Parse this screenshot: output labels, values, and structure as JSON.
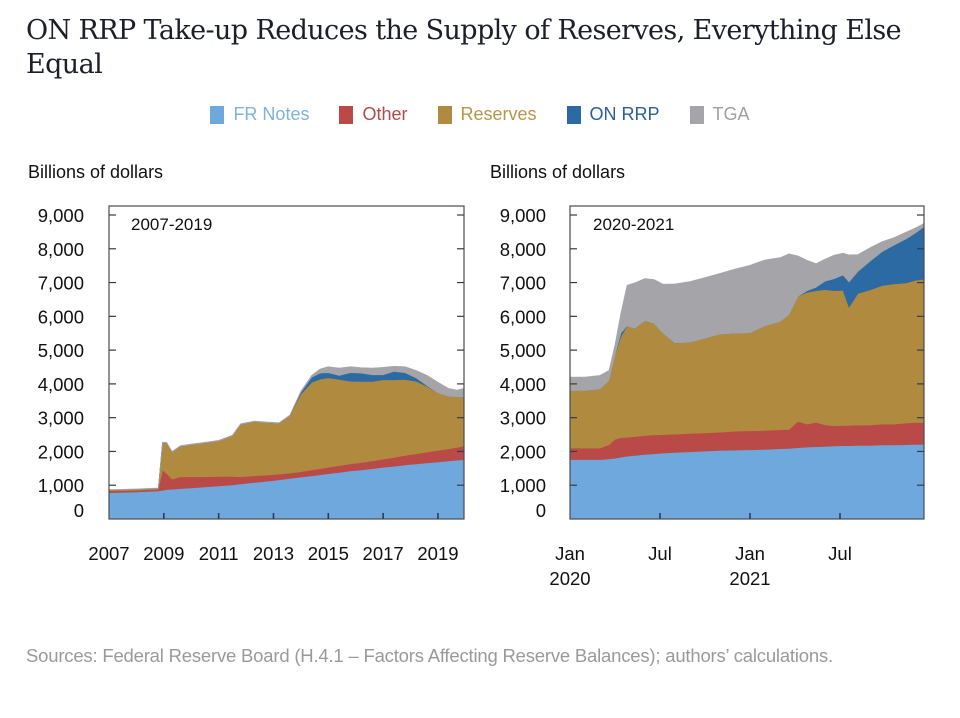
{
  "title": "ON RRP Take-up Reduces the Supply of Reserves, Everything Else Equal",
  "legend": [
    {
      "label": "FR Notes",
      "color": "#6ea8dc",
      "text_color": "#7fb2dc"
    },
    {
      "label": "Other",
      "color": "#b94a48",
      "text_color": "#b24a4a"
    },
    {
      "label": "Reserves",
      "color": "#b08a3e",
      "text_color": "#b89548"
    },
    {
      "label": "ON RRP",
      "color": "#2b6aa3",
      "text_color": "#2b5f96"
    },
    {
      "label": "TGA",
      "color": "#a5a5a9",
      "text_color": "#a0a0a0"
    }
  ],
  "source": "Sources: Federal Reserve Board (H.4.1 – Factors Affecting Reserve Balances); authors’ calculations.",
  "chart_data": [
    {
      "type": "area",
      "stacked": true,
      "panel_label": "2007-2019",
      "ylabel": "Billions of dollars",
      "xlabel": "",
      "ylim": [
        0,
        9000
      ],
      "xlim": [
        2007,
        2019.95
      ],
      "yticks": [
        0,
        1000,
        2000,
        3000,
        4000,
        5000,
        6000,
        7000,
        8000,
        9000
      ],
      "ytick_labels": [
        "0",
        "1,000",
        "2,000",
        "3,000",
        "4,000",
        "5,000",
        "6,000",
        "7,000",
        "8,000",
        "9,000"
      ],
      "xticks": [
        2007,
        2009,
        2011,
        2013,
        2015,
        2017,
        2019
      ],
      "xtick_labels": [
        "2007",
        "2009",
        "2011",
        "2013",
        "2015",
        "2017",
        "2019"
      ],
      "xtick_marks": [
        2009,
        2011,
        2013,
        2015,
        2017,
        2019
      ],
      "grid": false,
      "x": [
        2007,
        2008.0,
        2008.8,
        2008.95,
        2009.1,
        2009.3,
        2009.6,
        2010.0,
        2010.5,
        2011.0,
        2011.5,
        2011.8,
        2012.3,
        2012.8,
        2013.2,
        2013.6,
        2014.0,
        2014.4,
        2014.7,
        2015.0,
        2015.4,
        2015.8,
        2016.2,
        2016.6,
        2017.0,
        2017.4,
        2017.8,
        2018.2,
        2018.6,
        2019.0,
        2019.4,
        2019.7,
        2019.95
      ],
      "series": [
        {
          "name": "FR Notes",
          "values": [
            780,
            800,
            830,
            850,
            870,
            880,
            900,
            920,
            950,
            980,
            1010,
            1040,
            1080,
            1120,
            1160,
            1200,
            1240,
            1280,
            1310,
            1340,
            1380,
            1420,
            1450,
            1490,
            1530,
            1560,
            1600,
            1630,
            1660,
            1690,
            1720,
            1740,
            1760
          ]
        },
        {
          "name": "Other",
          "values": [
            50,
            50,
            50,
            600,
            480,
            300,
            350,
            330,
            300,
            280,
            250,
            210,
            200,
            180,
            170,
            160,
            160,
            170,
            180,
            190,
            200,
            210,
            220,
            230,
            240,
            260,
            280,
            300,
            320,
            340,
            360,
            380,
            400
          ]
        },
        {
          "name": "Reserves",
          "values": [
            30,
            30,
            30,
            800,
            900,
            800,
            900,
            950,
            1000,
            1050,
            1200,
            1550,
            1600,
            1550,
            1500,
            1700,
            2300,
            2600,
            2650,
            2650,
            2550,
            2450,
            2400,
            2350,
            2350,
            2300,
            2250,
            2150,
            1950,
            1700,
            1550,
            1500,
            1450
          ]
        },
        {
          "name": "ON RRP",
          "values": [
            0,
            0,
            0,
            0,
            0,
            0,
            0,
            0,
            0,
            0,
            0,
            0,
            0,
            0,
            0,
            0,
            50,
            150,
            180,
            150,
            120,
            250,
            250,
            200,
            150,
            250,
            200,
            100,
            20,
            0,
            0,
            0,
            0
          ]
        },
        {
          "name": "TGA",
          "values": [
            10,
            10,
            10,
            30,
            20,
            20,
            20,
            20,
            20,
            20,
            20,
            20,
            20,
            20,
            20,
            20,
            40,
            60,
            120,
            180,
            220,
            180,
            160,
            200,
            220,
            150,
            180,
            220,
            300,
            320,
            230,
            200,
            260
          ]
        }
      ]
    },
    {
      "type": "area",
      "stacked": true,
      "panel_label": "2020-2021",
      "ylabel": "Billions of dollars",
      "xlabel": "",
      "ylim": [
        0,
        9000
      ],
      "xlim": [
        0,
        23.6
      ],
      "x_unit": "months since Jan 2020",
      "yticks": [
        0,
        1000,
        2000,
        3000,
        4000,
        5000,
        6000,
        7000,
        8000,
        9000
      ],
      "ytick_labels": [
        "0",
        "1,000",
        "2,000",
        "3,000",
        "4,000",
        "5,000",
        "6,000",
        "7,000",
        "8,000",
        "9,000"
      ],
      "xticks": [
        0,
        6,
        12,
        18
      ],
      "xtick_labels": [
        "Jan\n2020",
        "Jul",
        "Jan\n2021",
        "Jul"
      ],
      "xtick_marks": [
        6,
        12,
        18
      ],
      "grid": false,
      "x": [
        0,
        1,
        2,
        2.6,
        3.0,
        3.4,
        3.8,
        4.3,
        5.0,
        5.6,
        6.2,
        7.0,
        8.0,
        9.0,
        10.0,
        11.0,
        12.0,
        13.0,
        14.0,
        14.6,
        15.2,
        15.8,
        16.4,
        17.0,
        17.6,
        18.2,
        18.6,
        19.2,
        20.0,
        20.8,
        21.6,
        22.4,
        23.0,
        23.6
      ],
      "series": [
        {
          "name": "FR Notes",
          "values": [
            1760,
            1760,
            1760,
            1780,
            1800,
            1830,
            1860,
            1880,
            1910,
            1930,
            1950,
            1970,
            1990,
            2010,
            2030,
            2040,
            2050,
            2060,
            2080,
            2090,
            2110,
            2130,
            2140,
            2150,
            2160,
            2170,
            2170,
            2180,
            2180,
            2190,
            2190,
            2200,
            2210,
            2210
          ]
        },
        {
          "name": "Other",
          "values": [
            340,
            340,
            340,
            420,
            560,
            580,
            560,
            560,
            560,
            560,
            550,
            540,
            540,
            540,
            540,
            560,
            560,
            560,
            560,
            560,
            780,
            680,
            720,
            640,
            600,
            600,
            600,
            600,
            600,
            620,
            620,
            640,
            650,
            640
          ]
        },
        {
          "name": "Reserves",
          "values": [
            1700,
            1700,
            1750,
            1900,
            2500,
            3000,
            3300,
            3200,
            3400,
            3300,
            3000,
            2700,
            2700,
            2800,
            2900,
            2900,
            2900,
            3100,
            3200,
            3400,
            3700,
            3900,
            3900,
            4000,
            4000,
            4000,
            3500,
            3900,
            4000,
            4100,
            4150,
            4150,
            4200,
            4250
          ]
        },
        {
          "name": "ON RRP",
          "values": [
            0,
            0,
            0,
            0,
            0,
            100,
            0,
            0,
            0,
            0,
            0,
            0,
            0,
            0,
            0,
            0,
            0,
            0,
            0,
            0,
            0,
            50,
            100,
            250,
            350,
            450,
            750,
            650,
            850,
            1000,
            1150,
            1300,
            1400,
            1550
          ]
        },
        {
          "name": "TGA",
          "values": [
            400,
            400,
            400,
            300,
            300,
            600,
            1200,
            1350,
            1250,
            1300,
            1450,
            1750,
            1800,
            1800,
            1800,
            1900,
            2000,
            1950,
            1900,
            1800,
            1200,
            900,
            700,
            650,
            700,
            650,
            800,
            500,
            400,
            300,
            220,
            200,
            150,
            100
          ]
        }
      ]
    }
  ]
}
